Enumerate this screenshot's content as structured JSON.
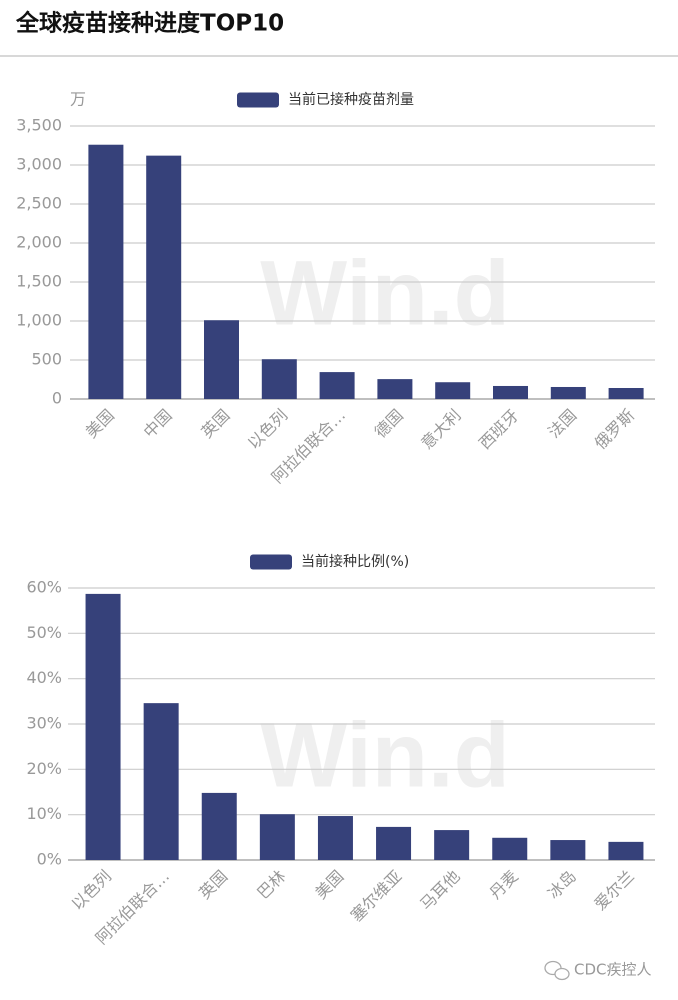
{
  "title": "全球疫苗接种进度TOP10",
  "footer": "CDC疾控人",
  "chart_data": [
    {
      "type": "bar",
      "watermark": "Win.d",
      "y_unit": "万",
      "categories": [
        "美国",
        "中国",
        "英国",
        "以色列",
        "阿拉伯联合…",
        "德国",
        "意大利",
        "西班牙",
        "法国",
        "俄罗斯"
      ],
      "series": [
        {
          "name": "当前已接种疫苗剂量",
          "color": "#36417a",
          "values": [
            3260,
            3120,
            1010,
            510,
            345,
            255,
            215,
            167,
            154,
            141
          ]
        }
      ],
      "ylim": [
        0,
        3500
      ],
      "yticks": [
        0,
        500,
        {
          "value": 1000,
          "label": "1,000"
        },
        {
          "value": 1500,
          "label": "1,500"
        },
        {
          "value": 2000,
          "label": "2,000"
        },
        {
          "value": 2500,
          "label": "2,500"
        },
        {
          "value": 3000,
          "label": "3,000"
        },
        {
          "value": 3500,
          "label": "3,500"
        }
      ],
      "grid": true
    },
    {
      "type": "bar",
      "watermark": "Win.d",
      "categories": [
        "以色列",
        "阿拉伯联合…",
        "英国",
        "巴林",
        "美国",
        "塞尔维亚",
        "马耳他",
        "丹麦",
        "冰岛",
        "爱尔兰"
      ],
      "series": [
        {
          "name": "当前接种比例(%)",
          "color": "#36417a",
          "values": [
            58.7,
            34.6,
            14.8,
            10.1,
            9.7,
            7.3,
            6.6,
            4.9,
            4.4,
            4.0
          ]
        }
      ],
      "ylim": [
        0,
        60
      ],
      "yticks": [
        {
          "value": 0,
          "label": "0%"
        },
        {
          "value": 10,
          "label": "10%"
        },
        {
          "value": 20,
          "label": "20%"
        },
        {
          "value": 30,
          "label": "30%"
        },
        {
          "value": 40,
          "label": "40%"
        },
        {
          "value": 50,
          "label": "50%"
        },
        {
          "value": 60,
          "label": "60%"
        }
      ],
      "grid": true
    }
  ]
}
